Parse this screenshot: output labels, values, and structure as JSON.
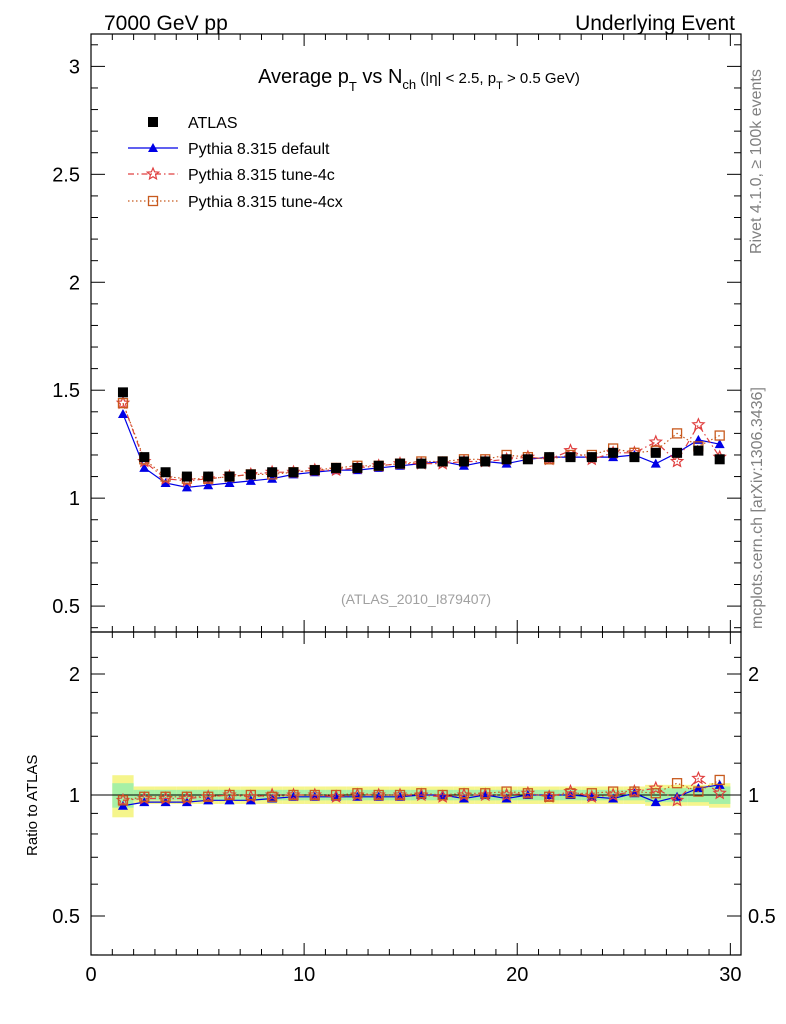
{
  "header": {
    "left": "7000 GeV pp",
    "right": "Underlying Event"
  },
  "side_labels": {
    "rivet": "Rivet 4.1.0, ≥ 100k events",
    "mcplots": "mcplots.cern.ch [arXiv:1306.3436]"
  },
  "chart_data": {
    "type": "scatter",
    "title": {
      "main": "Average p",
      "main_sub": "T",
      "vs": " vs N",
      "vs_sub": "ch",
      "cut_open": " (|η| < 2.5, p",
      "cut_sub": "T",
      "cut_close": " > 0.5 GeV)"
    },
    "analysis_id": "(ATLAS_2010_I879407)",
    "xlabel": "",
    "ylabel_ratio": "Ratio to ATLAS",
    "xlim": [
      0,
      30.5
    ],
    "ylim_main": [
      0.38,
      3.15
    ],
    "ylim_ratio": [
      0.36,
      2.35
    ],
    "x_ticks": [
      "0",
      "10",
      "20",
      "30"
    ],
    "y_ticks_main": [
      "0.5",
      "1",
      "1.5",
      "2",
      "2.5",
      "3"
    ],
    "y_ticks_ratio": [
      "0.5",
      "1",
      "2"
    ],
    "legend_position": "top-left",
    "x": [
      1.5,
      2.5,
      3.5,
      4.5,
      5.5,
      6.5,
      7.5,
      8.5,
      9.5,
      10.5,
      11.5,
      12.5,
      13.5,
      14.5,
      15.5,
      16.5,
      17.5,
      18.5,
      19.5,
      20.5,
      21.5,
      22.5,
      23.5,
      24.5,
      25.5,
      26.5,
      27.5,
      28.5,
      29.5
    ],
    "series": [
      {
        "name": "ATLAS",
        "color": "#000000",
        "marker": "square-filled",
        "line": "none",
        "values": [
          1.49,
          1.19,
          1.12,
          1.1,
          1.1,
          1.1,
          1.11,
          1.12,
          1.12,
          1.13,
          1.14,
          1.14,
          1.15,
          1.16,
          1.16,
          1.17,
          1.17,
          1.17,
          1.18,
          1.18,
          1.19,
          1.19,
          1.19,
          1.21,
          1.19,
          1.21,
          1.21,
          1.22,
          1.18
        ],
        "ratio_band_total": [
          0.12,
          0.05,
          0.05,
          0.05,
          0.05,
          0.05,
          0.05,
          0.05,
          0.05,
          0.05,
          0.05,
          0.05,
          0.05,
          0.05,
          0.05,
          0.05,
          0.05,
          0.05,
          0.05,
          0.05,
          0.05,
          0.05,
          0.05,
          0.05,
          0.05,
          0.06,
          0.06,
          0.06,
          0.07
        ],
        "ratio_band_stat": [
          0.07,
          0.03,
          0.03,
          0.03,
          0.03,
          0.03,
          0.03,
          0.03,
          0.03,
          0.03,
          0.03,
          0.03,
          0.03,
          0.03,
          0.03,
          0.03,
          0.03,
          0.03,
          0.03,
          0.03,
          0.03,
          0.03,
          0.03,
          0.03,
          0.03,
          0.04,
          0.04,
          0.04,
          0.05
        ]
      },
      {
        "name": "Pythia 8.315 default",
        "color": "#0000e6",
        "marker": "triangle-filled",
        "line": "solid",
        "values": [
          1.39,
          1.14,
          1.07,
          1.05,
          1.06,
          1.07,
          1.08,
          1.09,
          1.11,
          1.12,
          1.13,
          1.13,
          1.14,
          1.15,
          1.16,
          1.17,
          1.15,
          1.17,
          1.16,
          1.18,
          1.19,
          1.19,
          1.19,
          1.19,
          1.2,
          1.16,
          1.21,
          1.27,
          1.25
        ],
        "ratio": [
          0.94,
          0.96,
          0.96,
          0.96,
          0.97,
          0.97,
          0.97,
          0.98,
          0.99,
          0.99,
          0.99,
          0.99,
          0.99,
          0.99,
          1.0,
          1.0,
          0.98,
          1.0,
          0.98,
          1.0,
          1.0,
          1.0,
          0.99,
          0.98,
          1.01,
          0.96,
          0.99,
          1.04,
          1.06
        ]
      },
      {
        "name": "Pythia 8.315 tune-4c",
        "color": "#e04040",
        "marker": "star-open",
        "line": "dashdot",
        "values": [
          1.44,
          1.17,
          1.09,
          1.08,
          1.09,
          1.1,
          1.11,
          1.12,
          1.12,
          1.13,
          1.13,
          1.14,
          1.15,
          1.16,
          1.16,
          1.16,
          1.17,
          1.17,
          1.18,
          1.19,
          1.18,
          1.22,
          1.18,
          1.21,
          1.21,
          1.26,
          1.17,
          1.34,
          1.19
        ],
        "ratio": [
          0.97,
          0.98,
          0.98,
          0.98,
          0.99,
          1.0,
          0.99,
          1.0,
          1.0,
          1.0,
          0.99,
          1.0,
          1.0,
          1.0,
          1.0,
          0.99,
          1.0,
          1.0,
          1.0,
          1.01,
          0.99,
          1.02,
          0.99,
          1.0,
          1.02,
          1.04,
          0.97,
          1.1,
          1.01
        ]
      },
      {
        "name": "Pythia 8.315 tune-4cx",
        "color": "#c85a1e",
        "marker": "square-open",
        "line": "dotted",
        "values": [
          1.44,
          1.18,
          1.1,
          1.09,
          1.09,
          1.1,
          1.11,
          1.11,
          1.12,
          1.13,
          1.14,
          1.15,
          1.15,
          1.16,
          1.17,
          1.17,
          1.18,
          1.18,
          1.2,
          1.19,
          1.18,
          1.2,
          1.2,
          1.23,
          1.21,
          1.22,
          1.3,
          1.24,
          1.29
        ],
        "ratio": [
          0.97,
          0.99,
          0.99,
          0.99,
          0.99,
          1.0,
          1.0,
          0.99,
          1.0,
          1.0,
          1.0,
          1.01,
          1.0,
          1.0,
          1.01,
          1.0,
          1.01,
          1.01,
          1.02,
          1.01,
          0.99,
          1.01,
          1.01,
          1.02,
          1.02,
          1.01,
          1.07,
          1.02,
          1.09
        ]
      }
    ]
  }
}
